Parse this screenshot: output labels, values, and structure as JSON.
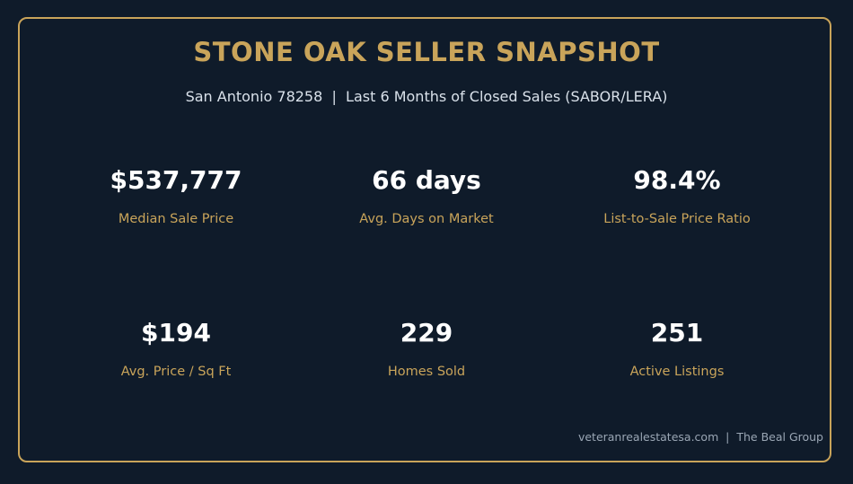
{
  "header": {
    "title": "STONE OAK SELLER SNAPSHOT",
    "subtitle": "San Antonio 78258  |  Last 6 Months of Closed Sales (SABOR/LERA)"
  },
  "stats": [
    {
      "value": "$537,777",
      "label": "Median Sale Price"
    },
    {
      "value": "66 days",
      "label": "Avg. Days on Market"
    },
    {
      "value": "98.4%",
      "label": "List-to-Sale Price Ratio"
    },
    {
      "value": "$194",
      "label": "Avg. Price / Sq Ft"
    },
    {
      "value": "229",
      "label": "Homes Sold"
    },
    {
      "value": "251",
      "label": "Active Listings"
    }
  ],
  "footer": {
    "text": "veteranrealestatesa.com  |  The Beal Group"
  },
  "colors": {
    "background": "#0f1b2a",
    "accent": "#c9a45a",
    "value_text": "#ffffff",
    "footer_text": "#9aa6b4"
  }
}
